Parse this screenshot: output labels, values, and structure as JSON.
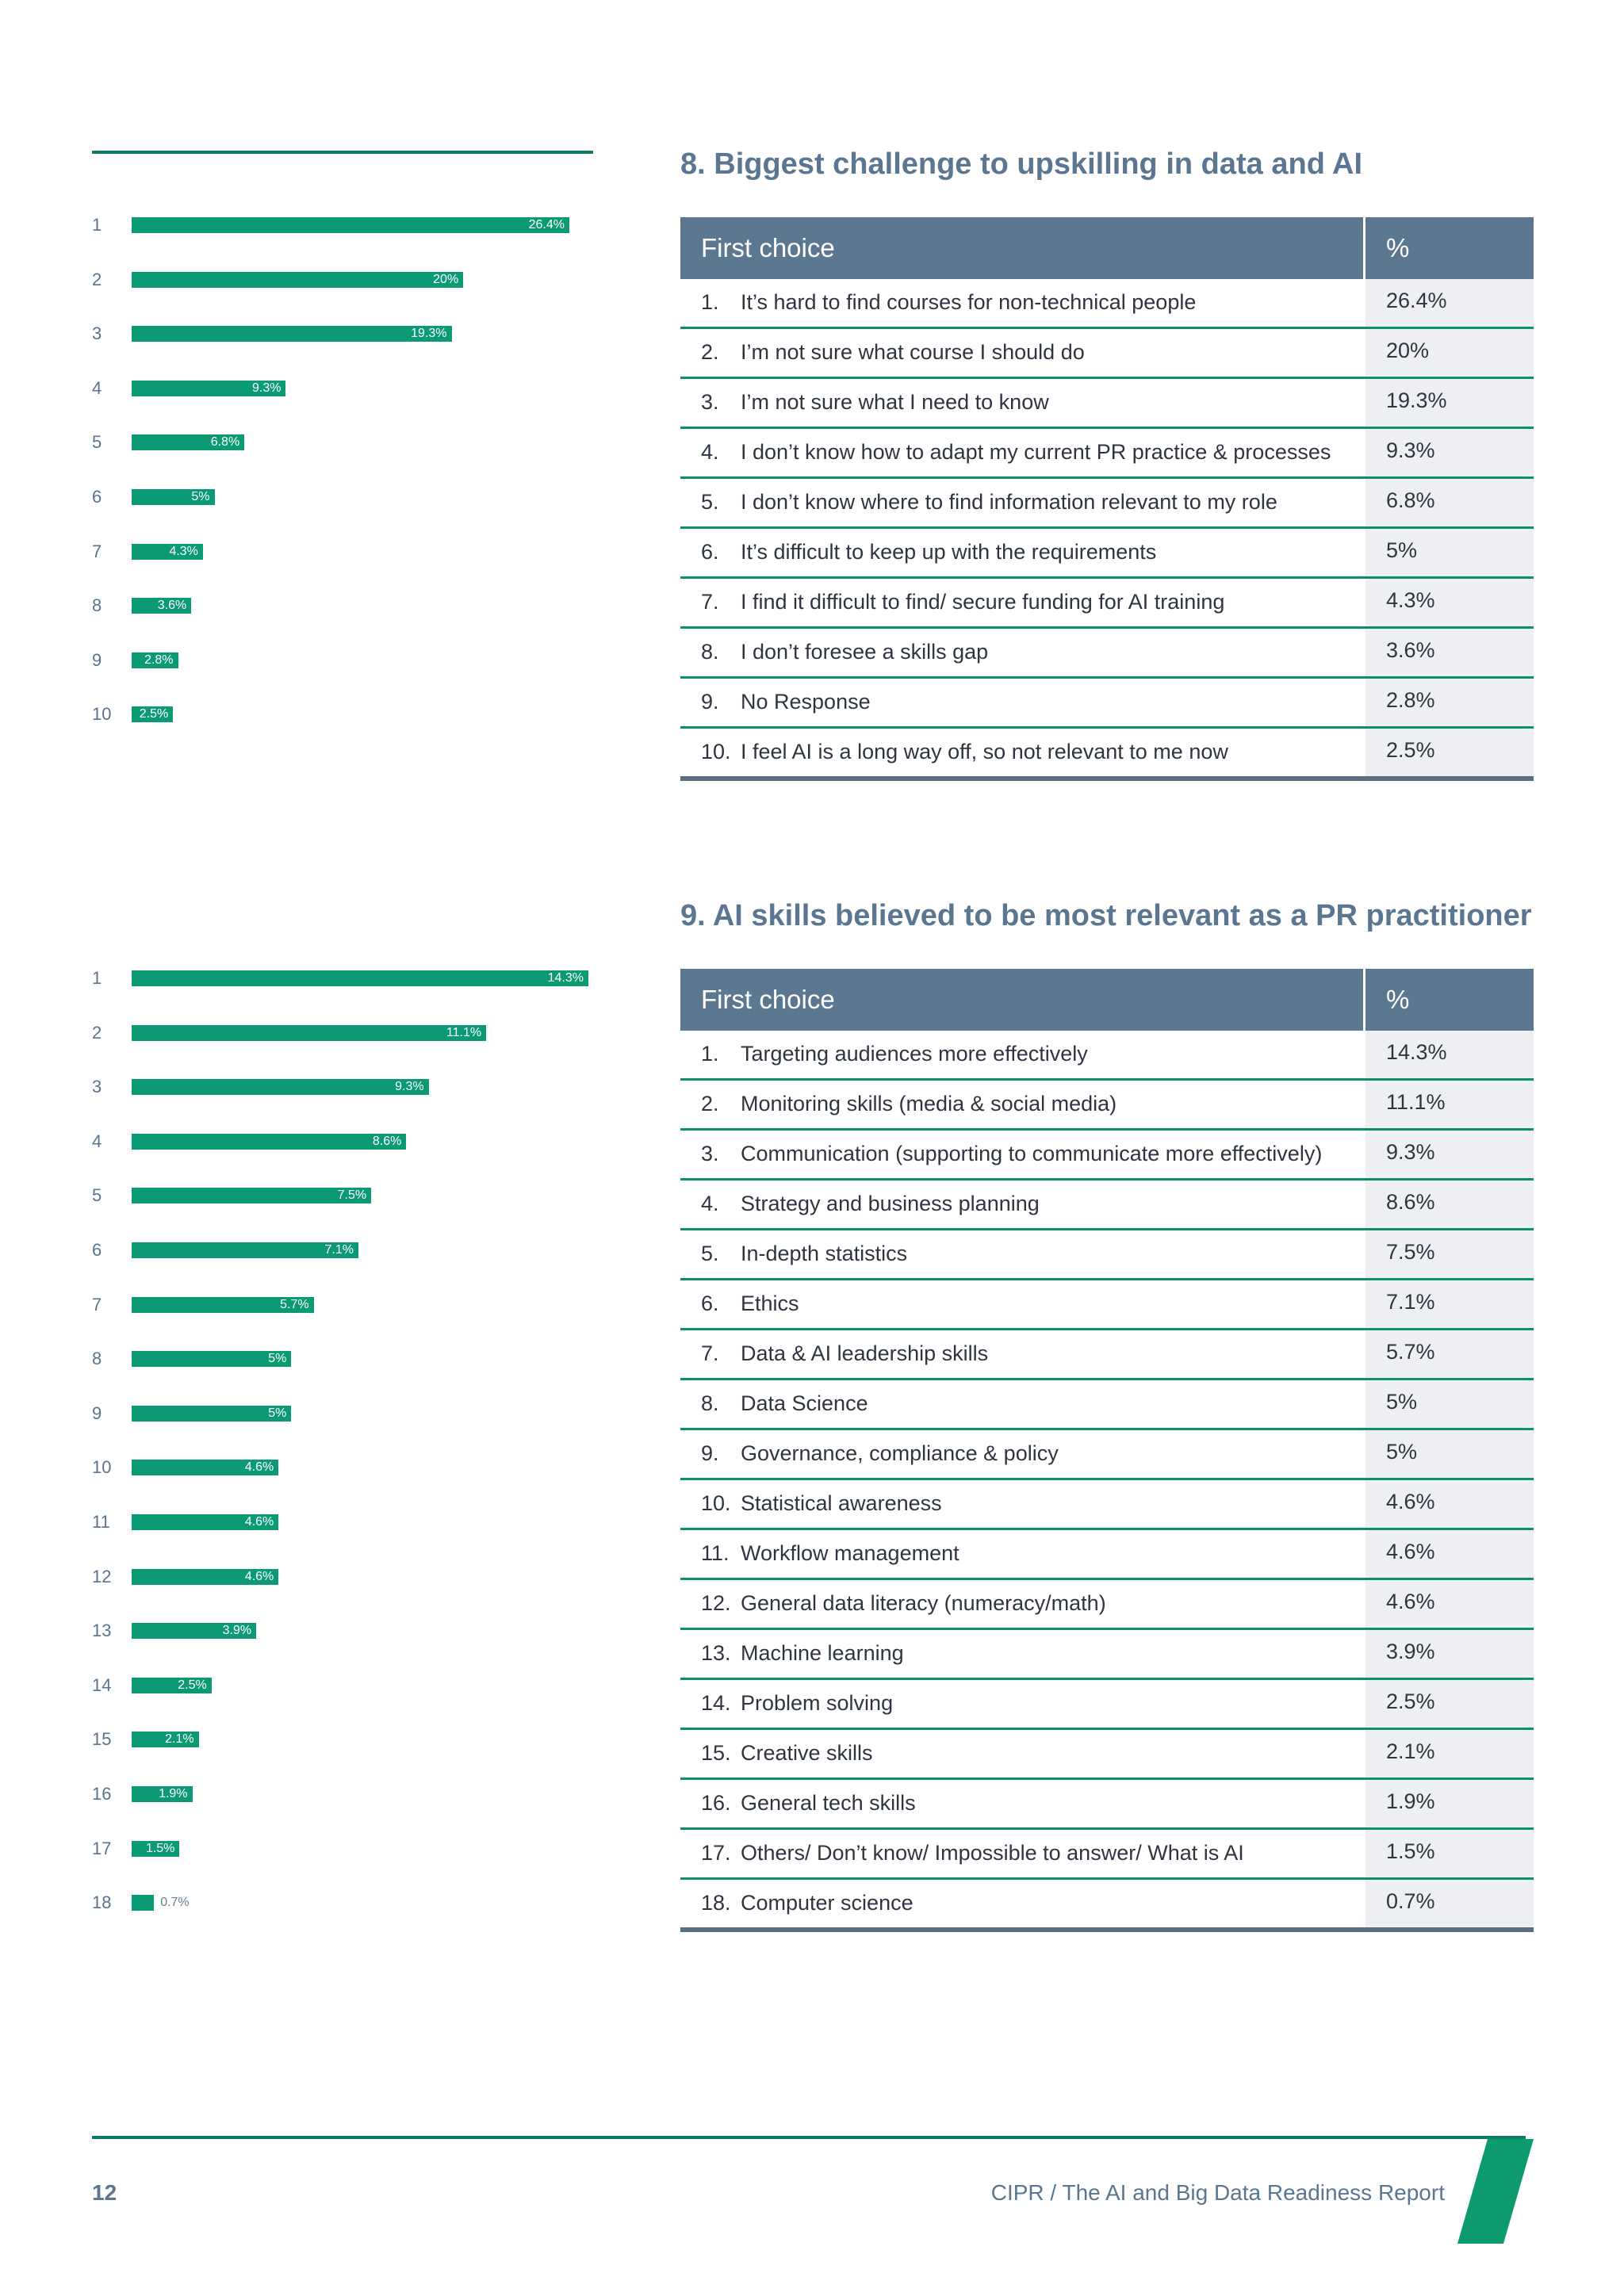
{
  "section8": {
    "title": "8. Biggest challenge to upskilling in data and AI",
    "header_choice": "First choice",
    "header_pct": "%",
    "rows": [
      {
        "rank": "1",
        "num": "1.",
        "text": "It’s hard to find courses for non-technical people",
        "pct": "26.4%",
        "value": 26.4
      },
      {
        "rank": "2",
        "num": "2.",
        "text": "I’m not sure what course I should do",
        "pct": "20%",
        "value": 20
      },
      {
        "rank": "3",
        "num": "3.",
        "text": "I’m not sure what I need to know",
        "pct": "19.3%",
        "value": 19.3
      },
      {
        "rank": "4",
        "num": "4.",
        "text": "I don’t know how to adapt my current PR practice & processes",
        "pct": "9.3%",
        "value": 9.3
      },
      {
        "rank": "5",
        "num": "5.",
        "text": "I don’t know where to find information relevant to my role",
        "pct": "6.8%",
        "value": 6.8
      },
      {
        "rank": "6",
        "num": "6.",
        "text": "It’s difficult to keep up with the requirements",
        "pct": "5%",
        "value": 5
      },
      {
        "rank": "7",
        "num": "7.",
        "text": "I find it difficult to find/ secure funding for AI training",
        "pct": "4.3%",
        "value": 4.3
      },
      {
        "rank": "8",
        "num": "8.",
        "text": "I don’t foresee a skills gap",
        "pct": "3.6%",
        "value": 3.6
      },
      {
        "rank": "9",
        "num": "9.",
        "text": "No Response",
        "pct": "2.8%",
        "value": 2.8
      },
      {
        "rank": "10",
        "num": "10.",
        "text": "I feel AI is a long way off, so not relevant to me now",
        "pct": "2.5%",
        "value": 2.5
      }
    ]
  },
  "section9": {
    "title": "9. AI skills believed to be most relevant as a PR practitioner",
    "header_choice": "First choice",
    "header_pct": "%",
    "rows": [
      {
        "rank": "1",
        "num": "1.",
        "text": "Targeting audiences more effectively",
        "pct": "14.3%",
        "value": 14.3
      },
      {
        "rank": "2",
        "num": "2.",
        "text": "Monitoring skills (media & social media)",
        "pct": "11.1%",
        "value": 11.1
      },
      {
        "rank": "3",
        "num": "3.",
        "text": "Communication (supporting to communicate more effectively)",
        "pct": "9.3%",
        "value": 9.3
      },
      {
        "rank": "4",
        "num": "4.",
        "text": "Strategy and business planning",
        "pct": "8.6%",
        "value": 8.6
      },
      {
        "rank": "5",
        "num": "5.",
        "text": "In-depth statistics",
        "pct": "7.5%",
        "value": 7.5
      },
      {
        "rank": "6",
        "num": "6.",
        "text": "Ethics",
        "pct": "7.1%",
        "value": 7.1
      },
      {
        "rank": "7",
        "num": "7.",
        "text": "Data & AI leadership skills",
        "pct": "5.7%",
        "value": 5.7
      },
      {
        "rank": "8",
        "num": "8.",
        "text": "Data Science",
        "pct": "5%",
        "value": 5
      },
      {
        "rank": "9",
        "num": "9.",
        "text": "Governance, compliance & policy",
        "pct": "5%",
        "value": 5
      },
      {
        "rank": "10",
        "num": "10.",
        "text": "Statistical awareness",
        "pct": "4.6%",
        "value": 4.6
      },
      {
        "rank": "11",
        "num": "11.",
        "text": "Workflow management",
        "pct": "4.6%",
        "value": 4.6
      },
      {
        "rank": "12",
        "num": "12.",
        "text": "General data literacy (numeracy/math)",
        "pct": "4.6%",
        "value": 4.6
      },
      {
        "rank": "13",
        "num": "13.",
        "text": "Machine learning",
        "pct": "3.9%",
        "value": 3.9
      },
      {
        "rank": "14",
        "num": "14.",
        "text": "Problem solving",
        "pct": "2.5%",
        "value": 2.5
      },
      {
        "rank": "15",
        "num": "15.",
        "text": "Creative skills",
        "pct": "2.1%",
        "value": 2.1
      },
      {
        "rank": "16",
        "num": "16.",
        "text": "General tech skills",
        "pct": "1.9%",
        "value": 1.9
      },
      {
        "rank": "17",
        "num": "17.",
        "text": "Others/ Don’t know/ Impossible to answer/ What is AI",
        "pct": "1.5%",
        "value": 1.5
      },
      {
        "rank": "18",
        "num": "18.",
        "text": "Computer science",
        "pct": "0.7%",
        "value": 0.7
      }
    ]
  },
  "footer": {
    "page_number": "12",
    "text": "CIPR / The AI and Big Data Readiness Report"
  },
  "colors": {
    "bar": "#0b9a73",
    "header": "#5b7890",
    "title": "#5b7690",
    "accent": "#0c9a6e"
  }
}
